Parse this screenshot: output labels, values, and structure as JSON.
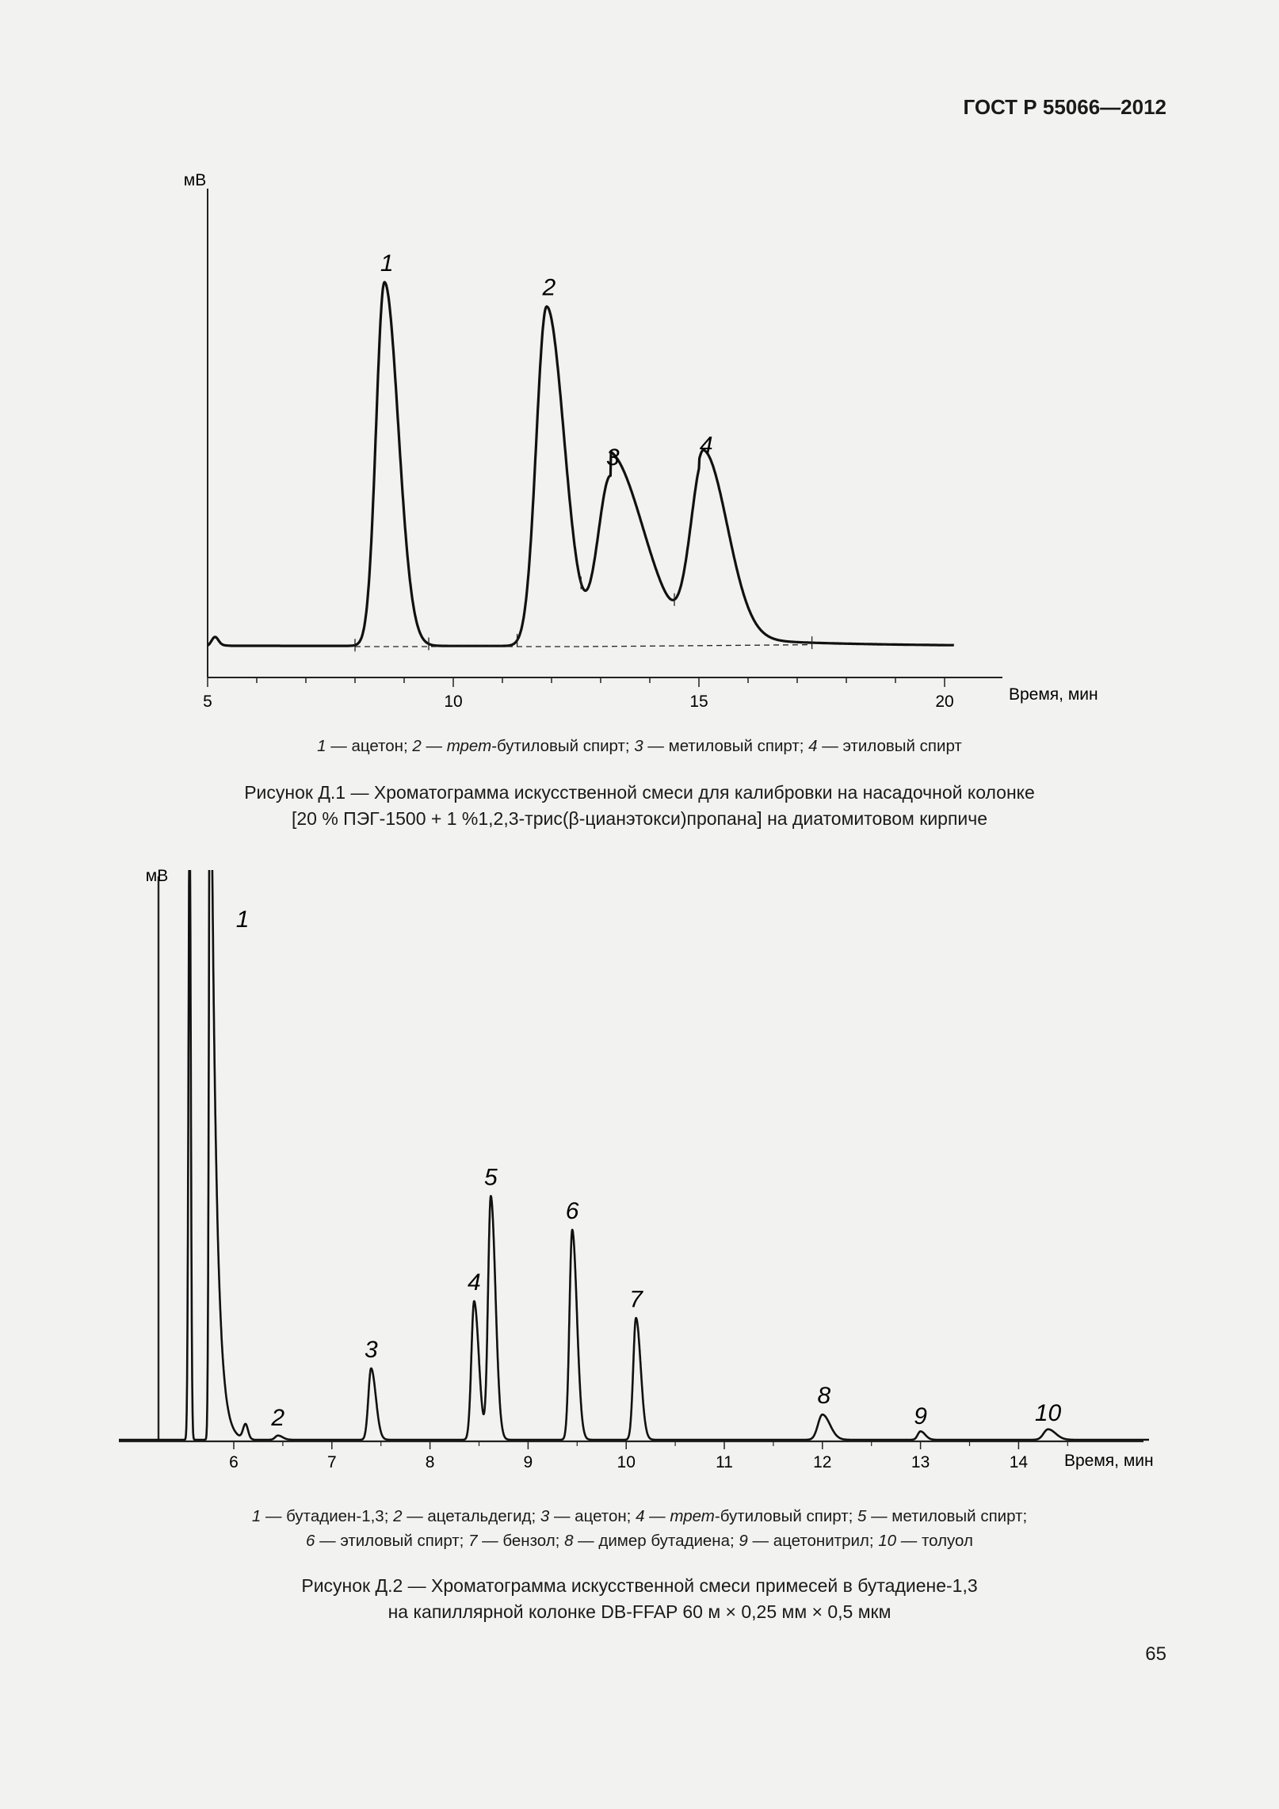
{
  "header": {
    "doc_code": "ГОСТ Р 55066—2012"
  },
  "page_number": "65",
  "figure1": {
    "legend_html": "<i>1</i> — ацетон; <i>2</i> — <i>трет</i>-бутиловый спирт; <i>3</i> — метиловый спирт; <i>4</i> — этиловый спирт",
    "title_line1": "Рисунок Д.1 — Хроматограмма искусственной смеси для калибровки на насадочной колонке",
    "title_line2": "[20 % ПЭГ-1500 + 1 %1,2,3-трис(β-цианэтокси)пропана] на диатомитовом кирпиче"
  },
  "figure2": {
    "legend_line1_html": "<i>1</i> — бутадиен-1,3; <i>2</i> — ацетальдегид; <i>3</i> — ацетон; <i>4</i> — <i>трет</i>-бутиловый спирт; <i>5</i> — метиловый спирт;",
    "legend_line2_html": "<i>6</i> — этиловый спирт; <i>7</i> — бензол; <i>8</i> — димер бутадиена; <i>9</i> — ацетонитрил; <i>10</i> — толуол",
    "title_line1": "Рисунок Д.2 — Хроматограмма искусственной смеси примесей в бутадиене-1,3",
    "title_line2": "на капиллярной колонке DB-FFAP 60 м × 0,25 мм × 0,5 мкм"
  },
  "chart_data": [
    {
      "type": "line",
      "ylabel": "мВ",
      "xlabel": "Время, мин",
      "xlim": [
        5,
        21
      ],
      "ylim": [
        0,
        100
      ],
      "xticks": [
        5,
        10,
        15,
        20
      ],
      "xtick_labels": [
        "5",
        "10",
        "15",
        "20"
      ],
      "grid": false,
      "peaks": [
        {
          "label": "1",
          "x": 8.6,
          "height": 90
        },
        {
          "label": "2",
          "x": 11.9,
          "height": 84
        },
        {
          "label": "3",
          "x": 13.2,
          "height": 42
        },
        {
          "label": "4",
          "x": 15.1,
          "height": 45
        }
      ],
      "integration_marks": [
        8.0,
        9.5,
        11.3,
        12.6,
        14.5,
        17.3
      ]
    },
    {
      "type": "line",
      "ylabel": "мВ",
      "xlabel": "Время, мин",
      "xlim": [
        4.6,
        15.5
      ],
      "ylim": [
        0,
        100
      ],
      "xticks": [
        6,
        7,
        8,
        9,
        10,
        11,
        12,
        13,
        14
      ],
      "xtick_labels": [
        "6",
        "7",
        "8",
        "9",
        "10",
        "11",
        "12",
        "13",
        "14"
      ],
      "grid": false,
      "peaks": [
        {
          "label": "1",
          "x": 5.75,
          "height": 100
        },
        {
          "label": "2",
          "x": 6.45,
          "height": 1
        },
        {
          "label": "3",
          "x": 7.4,
          "height": 17
        },
        {
          "label": "4",
          "x": 8.45,
          "height": 33
        },
        {
          "label": "5",
          "x": 8.62,
          "height": 58
        },
        {
          "label": "6",
          "x": 9.45,
          "height": 50
        },
        {
          "label": "7",
          "x": 10.1,
          "height": 29
        },
        {
          "label": "8",
          "x": 12.0,
          "height": 6
        },
        {
          "label": "9",
          "x": 13.0,
          "height": 2
        },
        {
          "label": "10",
          "x": 14.3,
          "height": 2.5
        }
      ]
    }
  ]
}
